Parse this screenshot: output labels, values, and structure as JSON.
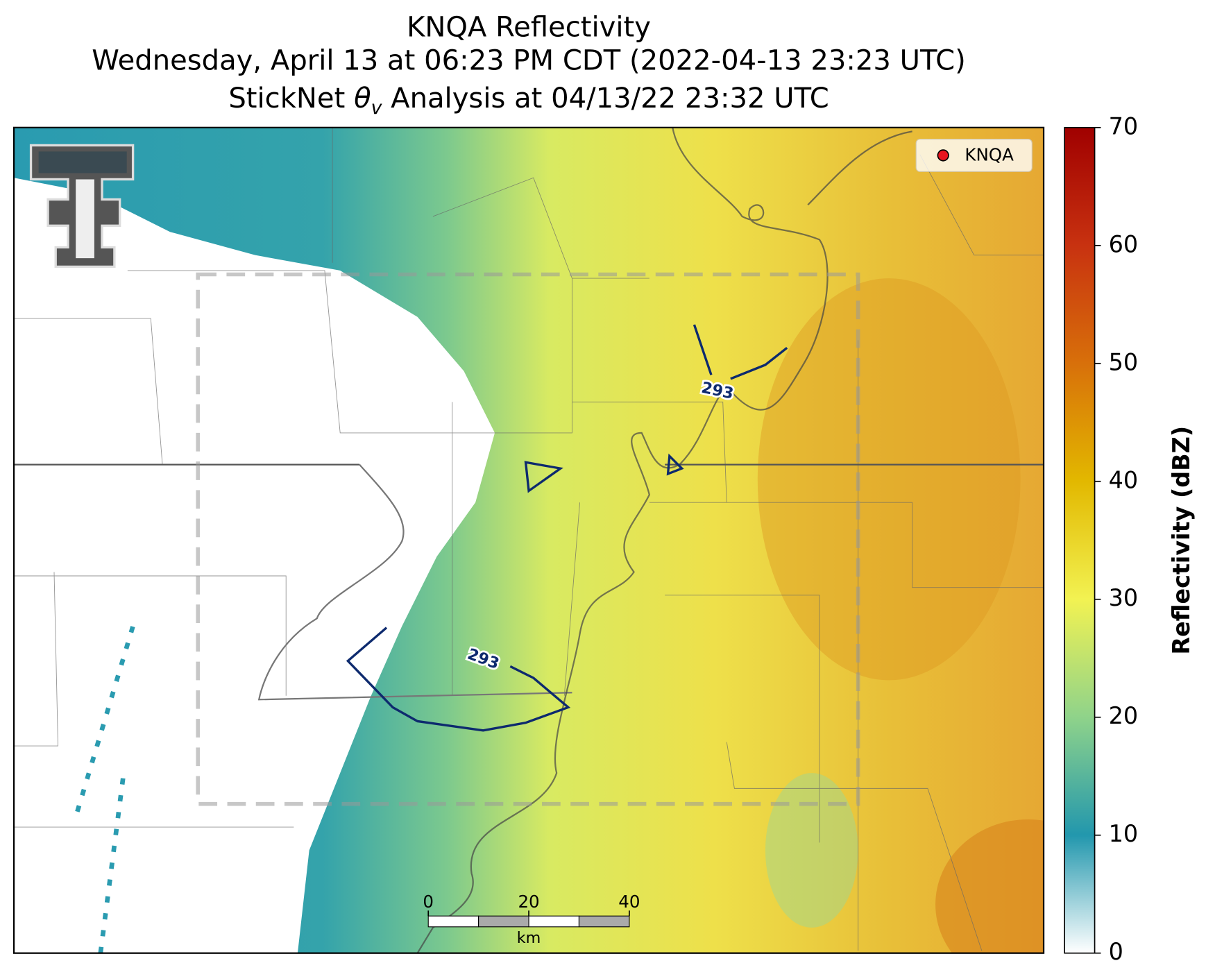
{
  "title": {
    "line1": "KNQA Reflectivity",
    "line2": "Wednesday, April 13 at 06:23 PM CDT (2022-04-13 23:23 UTC)",
    "line3": {
      "prefix": "StickNet ",
      "symbol": "θ",
      "subscript": "v",
      "suffix": " Analysis at 04/13/22 23:32 UTC"
    }
  },
  "legend": {
    "label": "KNQA",
    "color": "#e8141e"
  },
  "contours": [
    {
      "label": "293"
    },
    {
      "label": "293"
    }
  ],
  "scale_bar": {
    "ticks": [
      0,
      20,
      40
    ],
    "unit": "km"
  },
  "colorbar": {
    "label": "Reflectivity (dBZ)",
    "lim": [
      0,
      70
    ],
    "ticks": [
      0,
      10,
      20,
      30,
      40,
      50,
      60,
      70
    ],
    "colors": [
      "#ffffff",
      "#2297ad",
      "#8fd38a",
      "#f2f252",
      "#e2b800",
      "#d8700a",
      "#c83210",
      "#a00000"
    ]
  }
}
